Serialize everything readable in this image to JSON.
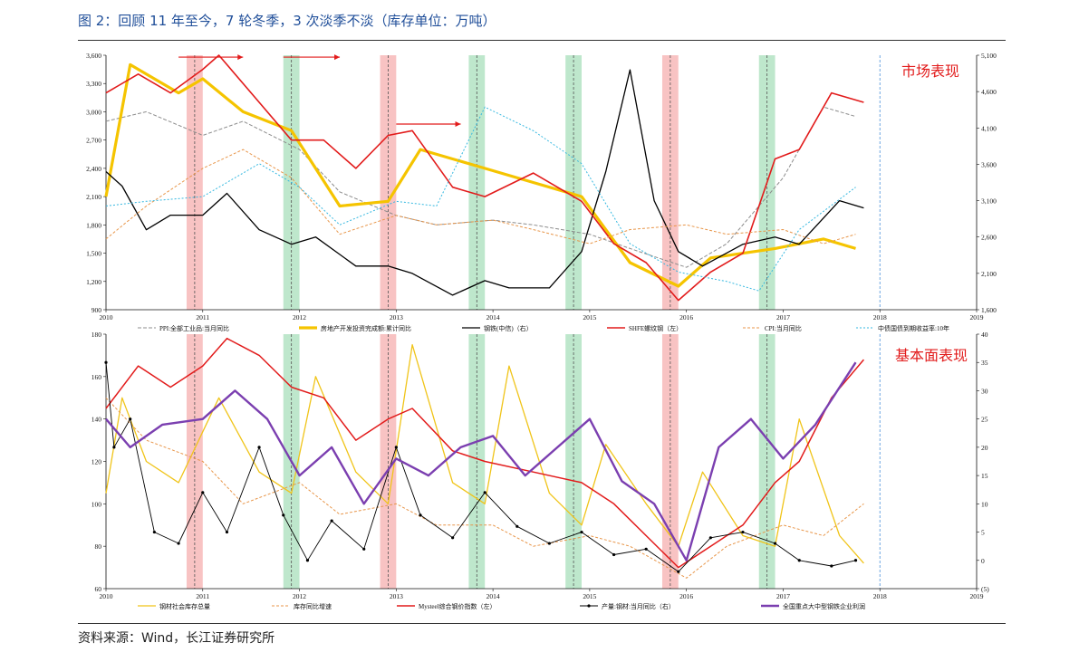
{
  "title": "图 2：回顾 11 年至今，7 轮冬季，3 次淡季不淡（库存单位：万吨）",
  "source": "资料来源：Wind，长江证券研究所",
  "colors": {
    "ppi": "#8c8c8c",
    "real_estate": "#f5c400",
    "rebar_price": "#000000",
    "shfe": "#e21b1b",
    "cpi": "#e8964a",
    "bond": "#35b8e0",
    "inventory": "#f0c419",
    "inventory_yoy": "#e8964a",
    "mysteel_index": "#e21b1b",
    "output_yoy": "#000000",
    "profit": "#7b3fb0",
    "winter_band": "#f7b9b9",
    "mark_band": "#b7e4c7",
    "arrow": "#e21b1b",
    "ref_line": "#4a90d9"
  },
  "chart_data": [
    {
      "type": "line",
      "panel_label": "市场表现",
      "x_ticks": [
        "2010",
        "2011",
        "2012",
        "2013",
        "2014",
        "2015",
        "2016",
        "2017",
        "2018",
        "2019"
      ],
      "xlim": [
        "2010-01",
        "2019-01"
      ],
      "y_left_ticks": [
        "3,600",
        "3,300",
        "3,000",
        "2,700",
        "2,400",
        "2,100",
        "1,800",
        "1,500",
        "1,200",
        "900"
      ],
      "ylim_left": [
        900,
        3600
      ],
      "y_right_ticks": [
        "5,100",
        "4,600",
        "4,100",
        "3,600",
        "3,100",
        "2,600",
        "2,100",
        "1,600"
      ],
      "ylim_right": [
        1600,
        5100
      ],
      "winter_bands": [
        [
          "2010-11",
          "2011-01"
        ],
        [
          "2012-11",
          "2013-01"
        ],
        [
          "2015-10",
          "2015-12"
        ]
      ],
      "mark_bands": [
        [
          "2011-11",
          "2012-01"
        ],
        [
          "2013-10",
          "2013-12"
        ],
        [
          "2014-10",
          "2014-12"
        ],
        [
          "2016-10",
          "2016-12"
        ]
      ],
      "arrows": [
        {
          "from": "2010-10",
          "to": "2011-06",
          "y": 3580
        },
        {
          "from": "2011-11",
          "to": "2012-06",
          "y": 3580
        },
        {
          "from": "2013-01",
          "to": "2013-09",
          "y": 2870
        }
      ],
      "series": [
        {
          "name": "PPI:全部工业品:当月同比",
          "legend": "PPI:全部工业品:当月同比",
          "color_key": "ppi",
          "axis": "left",
          "dash": "4,2",
          "x": [
            "2010-01",
            "2010-06",
            "2011-01",
            "2011-06",
            "2012-01",
            "2012-06",
            "2013-01",
            "2013-06",
            "2014-01",
            "2014-06",
            "2015-01",
            "2015-06",
            "2016-01",
            "2016-06",
            "2017-01",
            "2017-06",
            "2017-10"
          ],
          "values": [
            2900,
            3000,
            2750,
            2900,
            2600,
            2150,
            1900,
            1800,
            1850,
            1800,
            1700,
            1550,
            1350,
            1600,
            2300,
            3050,
            2950
          ]
        },
        {
          "name": "房地产开发投资完成额:累计同比",
          "legend": "房地产开发投资完成额:累计同比",
          "color_key": "real_estate",
          "axis": "left",
          "width": 3.2,
          "x": [
            "2010-01",
            "2010-04",
            "2010-10",
            "2011-01",
            "2011-06",
            "2011-12",
            "2012-06",
            "2012-12",
            "2013-04",
            "2013-12",
            "2014-06",
            "2014-12",
            "2015-06",
            "2015-12",
            "2016-04",
            "2016-12",
            "2017-06",
            "2017-10"
          ],
          "values": [
            2100,
            3500,
            3200,
            3350,
            3000,
            2800,
            2000,
            2050,
            2600,
            2400,
            2250,
            2100,
            1400,
            1150,
            1450,
            1550,
            1650,
            1550
          ]
        },
        {
          "name": "钢铁(中信)（右）",
          "legend": "钢铁(中信)（右）",
          "color_key": "rebar_price",
          "axis": "right",
          "width": 1.3,
          "x": [
            "2010-01",
            "2010-03",
            "2010-06",
            "2010-09",
            "2011-01",
            "2011-04",
            "2011-08",
            "2011-12",
            "2012-03",
            "2012-08",
            "2012-12",
            "2013-03",
            "2013-08",
            "2013-12",
            "2014-03",
            "2014-08",
            "2014-12",
            "2015-03",
            "2015-06",
            "2015-09",
            "2015-12",
            "2016-03",
            "2016-08",
            "2016-12",
            "2017-03",
            "2017-08",
            "2017-11"
          ],
          "values": [
            3500,
            3300,
            2700,
            2900,
            2900,
            3200,
            2700,
            2500,
            2600,
            2200,
            2200,
            2100,
            1800,
            2000,
            1900,
            1900,
            2400,
            3500,
            4900,
            3100,
            2400,
            2200,
            2500,
            2600,
            2500,
            3100,
            3000
          ]
        },
        {
          "name": "SHFE螺纹钢（左）",
          "legend": "SHFE螺纹钢（左）",
          "color_key": "shfe",
          "axis": "left",
          "width": 1.6,
          "x": [
            "2010-01",
            "2010-05",
            "2010-09",
            "2011-01",
            "2011-03",
            "2011-08",
            "2011-12",
            "2012-04",
            "2012-08",
            "2012-12",
            "2013-03",
            "2013-08",
            "2013-12",
            "2014-06",
            "2014-12",
            "2015-04",
            "2015-08",
            "2015-12",
            "2016-04",
            "2016-08",
            "2016-12",
            "2017-03",
            "2017-07",
            "2017-11"
          ],
          "values": [
            3200,
            3400,
            3200,
            3450,
            3600,
            3100,
            2700,
            2700,
            2400,
            2750,
            2800,
            2200,
            2100,
            2350,
            2050,
            1600,
            1400,
            1000,
            1300,
            1500,
            2500,
            2600,
            3200,
            3100
          ]
        },
        {
          "name": "CPI:当月同比",
          "legend": "CPI:当月同比",
          "color_key": "cpi",
          "axis": "left",
          "dash": "3,2",
          "x": [
            "2010-01",
            "2010-06",
            "2011-01",
            "2011-06",
            "2011-12",
            "2012-06",
            "2013-01",
            "2013-06",
            "2014-01",
            "2014-06",
            "2015-01",
            "2015-06",
            "2016-01",
            "2016-06",
            "2017-01",
            "2017-06",
            "2017-10"
          ],
          "values": [
            1650,
            2000,
            2400,
            2600,
            2300,
            1700,
            1900,
            1800,
            1850,
            1750,
            1600,
            1750,
            1800,
            1700,
            1750,
            1600,
            1700
          ]
        },
        {
          "name": "中债国债到期收益率:10年",
          "legend": "中债国债到期收益率:10年",
          "color_key": "bond",
          "axis": "left",
          "dash": "2,2",
          "x": [
            "2010-01",
            "2010-06",
            "2011-01",
            "2011-08",
            "2012-01",
            "2012-06",
            "2013-01",
            "2013-06",
            "2013-12",
            "2014-06",
            "2014-12",
            "2015-06",
            "2015-12",
            "2016-06",
            "2016-10",
            "2017-03",
            "2017-10"
          ],
          "values": [
            2000,
            2050,
            2100,
            2450,
            2200,
            1800,
            2050,
            2000,
            3050,
            2800,
            2450,
            1600,
            1300,
            1200,
            1100,
            1750,
            2200
          ]
        }
      ]
    },
    {
      "type": "line",
      "panel_label": "基本面表现",
      "x_ticks": [
        "2010",
        "2011",
        "2012",
        "2013",
        "2014",
        "2015",
        "2016",
        "2017",
        "2018",
        "2019"
      ],
      "xlim": [
        "2010-01",
        "2019-01"
      ],
      "y_left_ticks": [
        "180",
        "160",
        "140",
        "120",
        "100",
        "80",
        "60"
      ],
      "ylim_left": [
        60,
        180
      ],
      "y_right_ticks": [
        "40",
        "35",
        "30",
        "25",
        "20",
        "15",
        "10",
        "5",
        "0",
        "(5)"
      ],
      "ylim_right": [
        -5,
        40
      ],
      "winter_bands": [
        [
          "2010-11",
          "2011-01"
        ],
        [
          "2012-11",
          "2013-01"
        ],
        [
          "2015-10",
          "2015-12"
        ]
      ],
      "mark_bands": [
        [
          "2011-11",
          "2012-01"
        ],
        [
          "2013-10",
          "2013-12"
        ],
        [
          "2014-10",
          "2014-12"
        ],
        [
          "2016-10",
          "2016-12"
        ]
      ],
      "series": [
        {
          "name": "钢材社会库存总量",
          "legend": "钢材社会库存总量",
          "color_key": "inventory",
          "axis": "left",
          "width": 1.3,
          "x": [
            "2010-01",
            "2010-03",
            "2010-06",
            "2010-10",
            "2011-03",
            "2011-08",
            "2011-12",
            "2012-03",
            "2012-08",
            "2012-12",
            "2013-03",
            "2013-08",
            "2013-12",
            "2014-03",
            "2014-08",
            "2014-12",
            "2015-03",
            "2015-08",
            "2015-12",
            "2016-03",
            "2016-08",
            "2016-12",
            "2017-03",
            "2017-08",
            "2017-11"
          ],
          "values": [
            105,
            150,
            120,
            110,
            150,
            115,
            105,
            160,
            115,
            100,
            175,
            110,
            100,
            165,
            105,
            90,
            128,
            100,
            80,
            115,
            85,
            80,
            140,
            85,
            72
          ]
        },
        {
          "name": "库存同比增速",
          "legend": "库存同比增速",
          "color_key": "inventory_yoy",
          "axis": "left",
          "dash": "3,2",
          "x": [
            "2010-01",
            "2010-06",
            "2011-01",
            "2011-06",
            "2012-01",
            "2012-06",
            "2013-01",
            "2013-06",
            "2014-01",
            "2014-06",
            "2015-01",
            "2015-06",
            "2016-01",
            "2016-06",
            "2017-01",
            "2017-06",
            "2017-11"
          ],
          "values": [
            150,
            130,
            120,
            100,
            110,
            95,
            100,
            90,
            90,
            80,
            85,
            80,
            65,
            80,
            90,
            85,
            100
          ]
        },
        {
          "name": "Mysteel综合钢价指数（左）",
          "legend": "Mysteel综合钢价指数（左）",
          "color_key": "mysteel_index",
          "axis": "left",
          "width": 1.5,
          "x": [
            "2010-01",
            "2010-05",
            "2010-09",
            "2011-01",
            "2011-04",
            "2011-08",
            "2011-12",
            "2012-04",
            "2012-08",
            "2012-12",
            "2013-03",
            "2013-08",
            "2013-12",
            "2014-06",
            "2014-12",
            "2015-04",
            "2015-08",
            "2015-12",
            "2016-04",
            "2016-08",
            "2016-12",
            "2017-03",
            "2017-07",
            "2017-11"
          ],
          "values": [
            145,
            165,
            155,
            165,
            178,
            170,
            155,
            150,
            130,
            140,
            145,
            125,
            120,
            115,
            110,
            100,
            85,
            70,
            80,
            90,
            110,
            120,
            150,
            168
          ]
        },
        {
          "name": "产量:钢材:当月同比（右）",
          "legend": "产量:钢材:当月同比（右）",
          "color_key": "output_yoy",
          "axis": "right",
          "width": 0.9,
          "markers": true,
          "x": [
            "2010-01",
            "2010-02",
            "2010-04",
            "2010-07",
            "2010-10",
            "2011-01",
            "2011-04",
            "2011-08",
            "2011-11",
            "2012-02",
            "2012-05",
            "2012-09",
            "2013-01",
            "2013-04",
            "2013-08",
            "2013-12",
            "2014-04",
            "2014-08",
            "2014-12",
            "2015-04",
            "2015-08",
            "2015-12",
            "2016-04",
            "2016-08",
            "2016-12",
            "2017-03",
            "2017-07",
            "2017-10"
          ],
          "values": [
            35,
            20,
            25,
            5,
            3,
            12,
            5,
            20,
            8,
            0,
            7,
            2,
            20,
            8,
            4,
            12,
            6,
            3,
            5,
            1,
            2,
            -2,
            4,
            5,
            3,
            0,
            -1,
            0
          ]
        },
        {
          "name": "全国重点大中型钢铁企业利润",
          "legend": "全国重点大中型钢铁企业利润",
          "color_key": "profit",
          "axis": "right",
          "width": 2.4,
          "x": [
            "2010-01",
            "2010-04",
            "2010-08",
            "2011-01",
            "2011-05",
            "2011-09",
            "2012-01",
            "2012-05",
            "2012-09",
            "2013-01",
            "2013-05",
            "2013-09",
            "2014-01",
            "2014-05",
            "2014-09",
            "2015-01",
            "2015-05",
            "2015-09",
            "2016-01",
            "2016-05",
            "2016-09",
            "2017-01",
            "2017-05",
            "2017-10"
          ],
          "values": [
            25,
            20,
            24,
            25,
            30,
            25,
            15,
            20,
            10,
            18,
            15,
            20,
            22,
            15,
            20,
            25,
            14,
            10,
            0,
            20,
            25,
            18,
            24,
            35
          ]
        }
      ]
    }
  ]
}
